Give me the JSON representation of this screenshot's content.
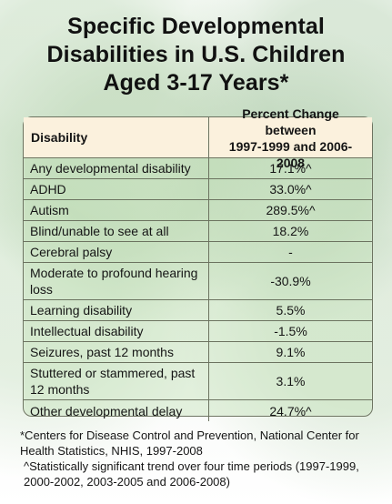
{
  "title_lines": [
    "Specific Developmental",
    "Disabilities in U.S. Children",
    "Aged 3-17 Years*"
  ],
  "table": {
    "headers": {
      "left": "Disability",
      "right_line_1": "Percent Change between",
      "right_line_2": "1997-1999 and 2006-2008"
    },
    "rows": [
      {
        "disability": "Any developmental disability",
        "change": "17.1%^"
      },
      {
        "disability": "ADHD",
        "change": "33.0%^"
      },
      {
        "disability": "Autism",
        "change": "289.5%^"
      },
      {
        "disability": "Blind/unable to see at all",
        "change": "18.2%"
      },
      {
        "disability": "Cerebral palsy",
        "change": "-"
      },
      {
        "disability": "Moderate to profound hearing loss",
        "change": "-30.9%"
      },
      {
        "disability": "Learning disability",
        "change": "5.5%"
      },
      {
        "disability": "Intellectual disability",
        "change": "-1.5%"
      },
      {
        "disability": "Seizures, past 12 months",
        "change": "9.1%"
      },
      {
        "disability": "Stuttered or stammered, past 12 months",
        "change": "3.1%"
      },
      {
        "disability": "Other developmental delay",
        "change": "24.7%^"
      }
    ]
  },
  "footnotes": {
    "source": "*Centers for Disease Control and Prevention, National Center for Health Statistics, NHIS, 1997-2008",
    "trend": "^Statistically significant trend over four time periods (1997-1999, 2000-2002, 2003-2005 and 2006-2008)"
  },
  "colors": {
    "table_fill": "#c2e1b6",
    "header_fill": "#fbf1dd",
    "border": "#6c7360",
    "text": "#151515"
  }
}
